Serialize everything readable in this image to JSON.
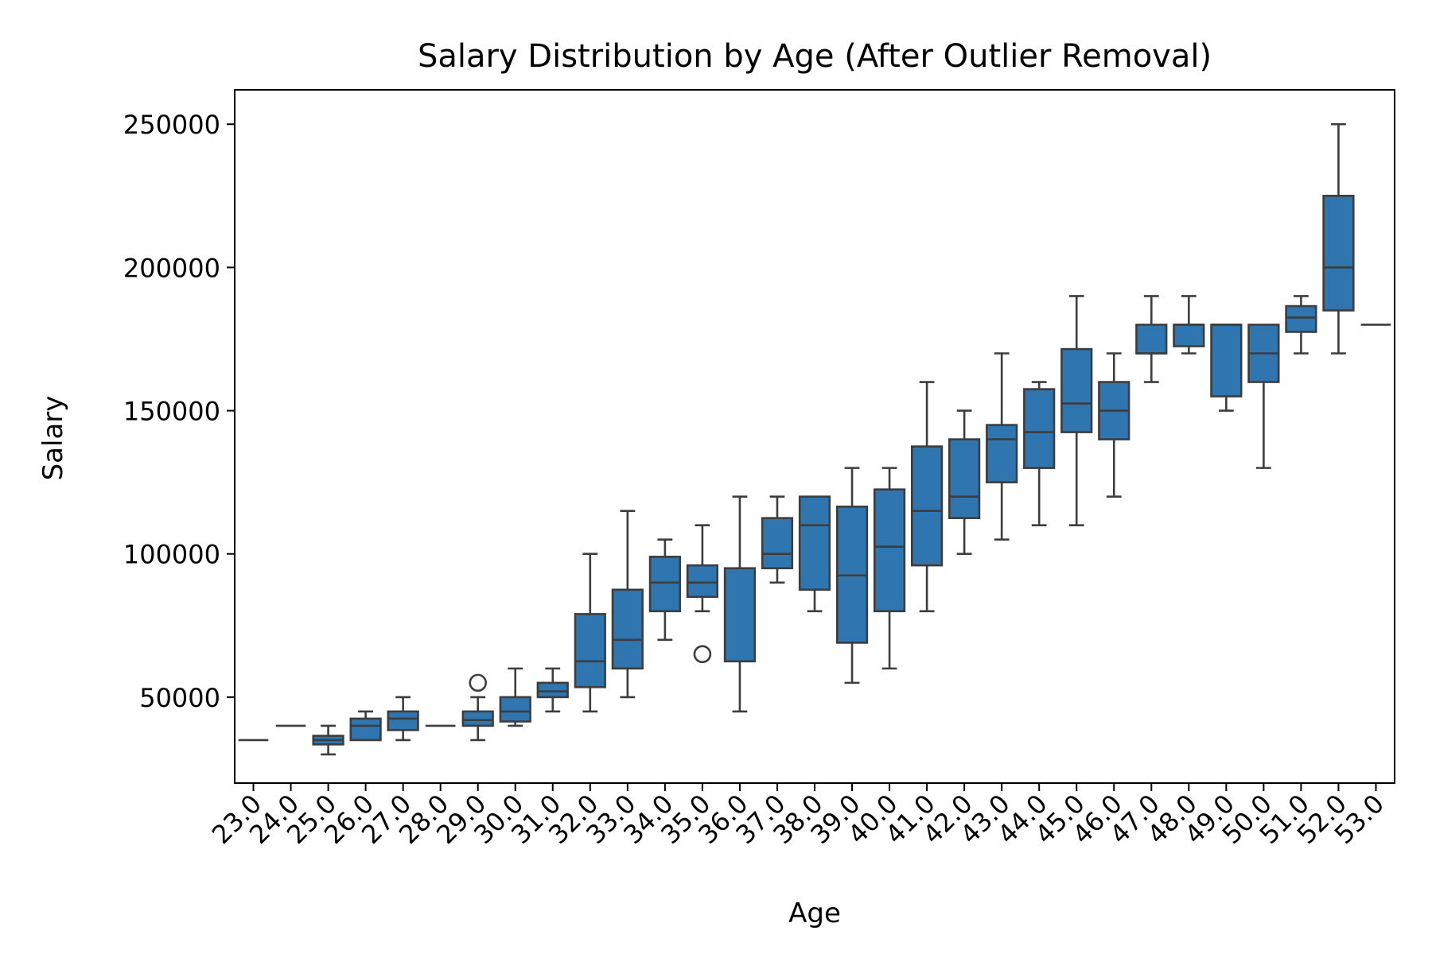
{
  "chart_data": {
    "type": "box",
    "title": "Salary Distribution by Age (After Outlier Removal)",
    "xlabel": "Age",
    "ylabel": "Salary",
    "ylim": [
      20000,
      262000
    ],
    "yticks": [
      50000,
      100000,
      150000,
      200000,
      250000
    ],
    "grid": false,
    "box_color": "#2f75b0",
    "line_color": "#3d3d3d",
    "categories": [
      "23.0",
      "24.0",
      "25.0",
      "26.0",
      "27.0",
      "28.0",
      "29.0",
      "30.0",
      "31.0",
      "32.0",
      "33.0",
      "34.0",
      "35.0",
      "36.0",
      "37.0",
      "38.0",
      "39.0",
      "40.0",
      "41.0",
      "42.0",
      "43.0",
      "44.0",
      "45.0",
      "46.0",
      "47.0",
      "48.0",
      "49.0",
      "50.0",
      "51.0",
      "52.0",
      "53.0"
    ],
    "boxes": [
      {
        "age": "23.0",
        "whislo": 35000,
        "q1": 35000,
        "med": 35000,
        "q3": 35000,
        "whishi": 35000,
        "fliers": []
      },
      {
        "age": "24.0",
        "whislo": 40000,
        "q1": 40000,
        "med": 40000,
        "q3": 40000,
        "whishi": 40000,
        "fliers": []
      },
      {
        "age": "25.0",
        "whislo": 30000,
        "q1": 33500,
        "med": 35000,
        "q3": 36500,
        "whishi": 40000,
        "fliers": []
      },
      {
        "age": "26.0",
        "whislo": 35000,
        "q1": 35000,
        "med": 40000,
        "q3": 42500,
        "whishi": 45000,
        "fliers": []
      },
      {
        "age": "27.0",
        "whislo": 35000,
        "q1": 38500,
        "med": 42500,
        "q3": 45000,
        "whishi": 50000,
        "fliers": []
      },
      {
        "age": "28.0",
        "whislo": 40000,
        "q1": 40000,
        "med": 40000,
        "q3": 40000,
        "whishi": 40000,
        "fliers": []
      },
      {
        "age": "29.0",
        "whislo": 35000,
        "q1": 40000,
        "med": 42000,
        "q3": 45000,
        "whishi": 50000,
        "fliers": [
          55000
        ]
      },
      {
        "age": "30.0",
        "whislo": 40000,
        "q1": 41500,
        "med": 45000,
        "q3": 50000,
        "whishi": 60000,
        "fliers": []
      },
      {
        "age": "31.0",
        "whislo": 45000,
        "q1": 50000,
        "med": 52000,
        "q3": 55000,
        "whishi": 60000,
        "fliers": []
      },
      {
        "age": "32.0",
        "whislo": 45000,
        "q1": 53500,
        "med": 62500,
        "q3": 79000,
        "whishi": 100000,
        "fliers": []
      },
      {
        "age": "33.0",
        "whislo": 50000,
        "q1": 60000,
        "med": 70000,
        "q3": 87500,
        "whishi": 115000,
        "fliers": []
      },
      {
        "age": "34.0",
        "whislo": 70000,
        "q1": 80000,
        "med": 90000,
        "q3": 99000,
        "whishi": 105000,
        "fliers": []
      },
      {
        "age": "35.0",
        "whislo": 80000,
        "q1": 85000,
        "med": 90000,
        "q3": 96000,
        "whishi": 110000,
        "fliers": [
          65000
        ]
      },
      {
        "age": "36.0",
        "whislo": 45000,
        "q1": 62500,
        "med": 95000,
        "q3": 95000,
        "whishi": 120000,
        "fliers": []
      },
      {
        "age": "37.0",
        "whislo": 90000,
        "q1": 95000,
        "med": 100000,
        "q3": 112500,
        "whishi": 120000,
        "fliers": []
      },
      {
        "age": "38.0",
        "whislo": 80000,
        "q1": 87500,
        "med": 110000,
        "q3": 120000,
        "whishi": 120000,
        "fliers": []
      },
      {
        "age": "39.0",
        "whislo": 55000,
        "q1": 69000,
        "med": 92500,
        "q3": 116500,
        "whishi": 130000,
        "fliers": []
      },
      {
        "age": "40.0",
        "whislo": 60000,
        "q1": 80000,
        "med": 102500,
        "q3": 122500,
        "whishi": 130000,
        "fliers": []
      },
      {
        "age": "41.0",
        "whislo": 80000,
        "q1": 96000,
        "med": 115000,
        "q3": 137500,
        "whishi": 160000,
        "fliers": []
      },
      {
        "age": "42.0",
        "whislo": 100000,
        "q1": 112500,
        "med": 120000,
        "q3": 140000,
        "whishi": 150000,
        "fliers": []
      },
      {
        "age": "43.0",
        "whislo": 105000,
        "q1": 125000,
        "med": 140000,
        "q3": 145000,
        "whishi": 170000,
        "fliers": []
      },
      {
        "age": "44.0",
        "whislo": 110000,
        "q1": 130000,
        "med": 142500,
        "q3": 157500,
        "whishi": 160000,
        "fliers": []
      },
      {
        "age": "45.0",
        "whislo": 110000,
        "q1": 142500,
        "med": 152500,
        "q3": 171500,
        "whishi": 190000,
        "fliers": []
      },
      {
        "age": "46.0",
        "whislo": 120000,
        "q1": 140000,
        "med": 150000,
        "q3": 160000,
        "whishi": 170000,
        "fliers": []
      },
      {
        "age": "47.0",
        "whislo": 160000,
        "q1": 170000,
        "med": 170000,
        "q3": 180000,
        "whishi": 190000,
        "fliers": []
      },
      {
        "age": "48.0",
        "whislo": 170000,
        "q1": 172500,
        "med": 180000,
        "q3": 180000,
        "whishi": 190000,
        "fliers": []
      },
      {
        "age": "49.0",
        "whislo": 150000,
        "q1": 155000,
        "med": 180000,
        "q3": 180000,
        "whishi": 180000,
        "fliers": []
      },
      {
        "age": "50.0",
        "whislo": 130000,
        "q1": 160000,
        "med": 170000,
        "q3": 180000,
        "whishi": 180000,
        "fliers": []
      },
      {
        "age": "51.0",
        "whislo": 170000,
        "q1": 177500,
        "med": 182500,
        "q3": 186500,
        "whishi": 190000,
        "fliers": []
      },
      {
        "age": "52.0",
        "whislo": 170000,
        "q1": 185000,
        "med": 200000,
        "q3": 225000,
        "whishi": 250000,
        "fliers": []
      },
      {
        "age": "53.0",
        "whislo": 180000,
        "q1": 180000,
        "med": 180000,
        "q3": 180000,
        "whishi": 180000,
        "fliers": []
      }
    ]
  }
}
